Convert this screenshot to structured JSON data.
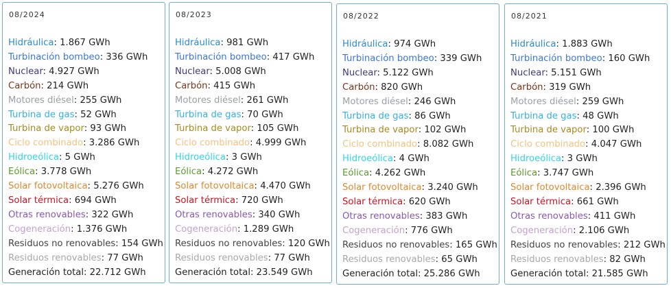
{
  "labels": [
    "Hidráulica",
    "Turbinación bombeo",
    "Nuclear",
    "Carbón",
    "Motores diésel",
    "Turbina de gas",
    "Turbina de vapor",
    "Ciclo combinado",
    "Hidroeólica",
    "Eólica",
    "Solar fotovoltaica",
    "Solar térmica",
    "Otras renovables",
    "Cogeneración",
    "Residuos no renovables",
    "Residuos renovables",
    "Generación total"
  ],
  "colors": [
    "#2b8bd0",
    "#3a78d6",
    "#3b3a7c",
    "#7a3518",
    "#9aa0a4",
    "#33b2e6",
    "#a88b1e",
    "#f5c27f",
    "#2fd6e6",
    "#5b9a2e",
    "#e0892e",
    "#d0121f",
    "#8a58b0",
    "#c6a0d0",
    "#444444",
    "#a8a8a8",
    "#222222"
  ],
  "cards": [
    {
      "date": "08/2024",
      "values": [
        "1.867 GWh",
        "336 GWh",
        "4.927 GWh",
        "214 GWh",
        "255 GWh",
        "52 GWh",
        "93 GWh",
        "3.286 GWh",
        "5 GWh",
        "3.778 GWh",
        "5.276 GWh",
        "694 GWh",
        "322 GWh",
        "1.376 GWh",
        "154 GWh",
        "77 GWh",
        "22.712 GWh"
      ]
    },
    {
      "date": "08/2023",
      "values": [
        "981 GWh",
        "417 GWh",
        "5.008 GWh",
        "415 GWh",
        "261 GWh",
        "70 GWh",
        "105 GWh",
        "4.999 GWh",
        "3 GWh",
        "4.272 GWh",
        "4.470 GWh",
        "720 GWh",
        "340 GWh",
        "1.289 GWh",
        "120 GWh",
        "77 GWh",
        "23.549 GWh"
      ]
    },
    {
      "date": "08/2022",
      "values": [
        "974 GWh",
        "339 GWh",
        "5.122 GWh",
        "820 GWh",
        "246 GWh",
        "86 GWh",
        "102 GWh",
        "8.082 GWh",
        "4 GWh",
        "4.262 GWh",
        "3.240 GWh",
        "620 GWh",
        "383 GWh",
        "776 GWh",
        "165 GWh",
        "65 GWh",
        "25.286 GWh"
      ]
    },
    {
      "date": "08/2021",
      "values": [
        "1.883 GWh",
        "160 GWh",
        "5.151 GWh",
        "319 GWh",
        "259 GWh",
        "48 GWh",
        "100 GWh",
        "4.047 GWh",
        "3 GWh",
        "3.747 GWh",
        "2.396 GWh",
        "661 GWh",
        "411 GWh",
        "2.106 GWh",
        "212 GWh",
        "82 GWh",
        "21.585 GWh"
      ]
    }
  ]
}
